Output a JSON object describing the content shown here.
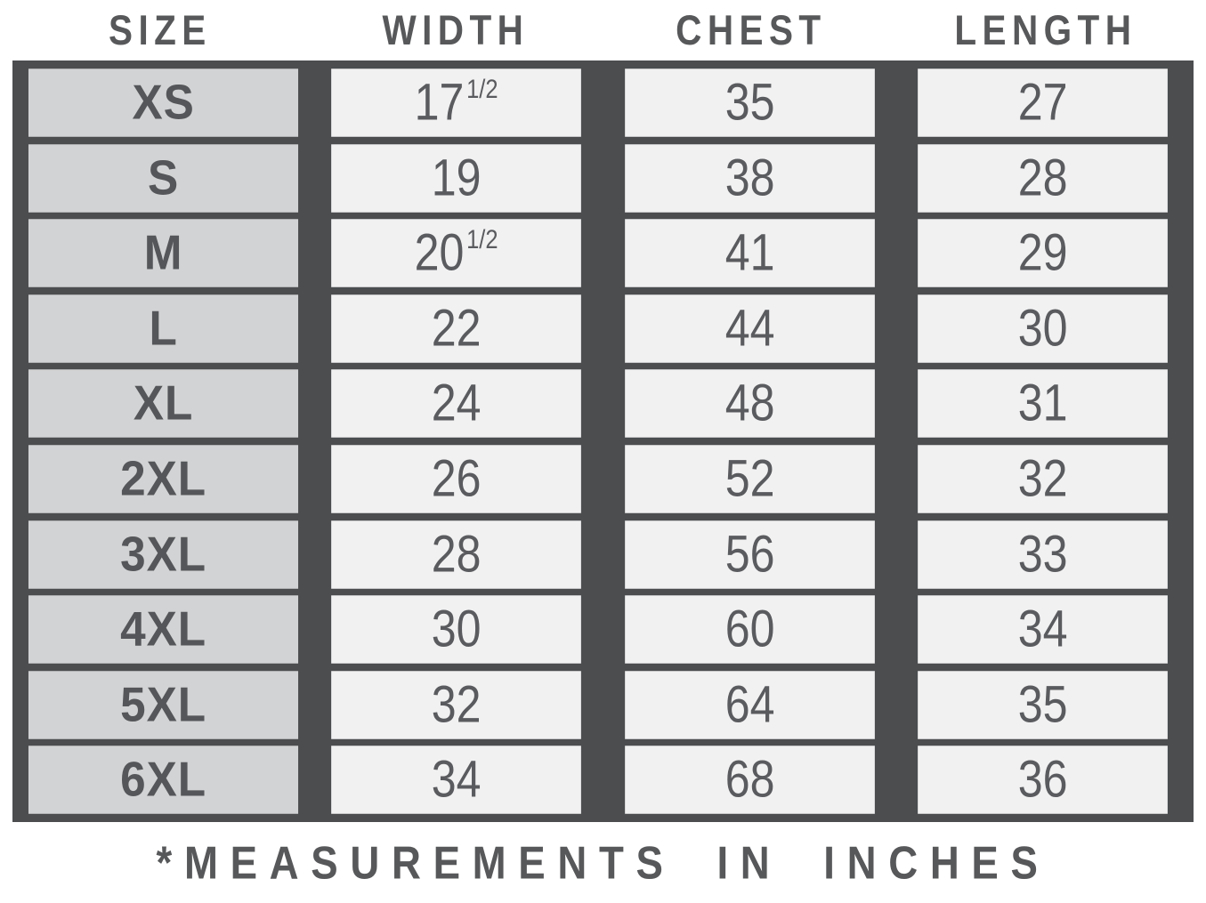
{
  "header": {
    "columns": [
      {
        "key": "size",
        "label": "SIZE"
      },
      {
        "key": "width",
        "label": "WIDTH"
      },
      {
        "key": "chest",
        "label": "CHEST"
      },
      {
        "key": "length",
        "label": "LENGTH"
      }
    ]
  },
  "table": {
    "rows": [
      {
        "size": "XS",
        "width": "17",
        "width_frac": "1/2",
        "chest": "35",
        "length": "27"
      },
      {
        "size": "S",
        "width": "19",
        "width_frac": "",
        "chest": "38",
        "length": "28"
      },
      {
        "size": "M",
        "width": "20",
        "width_frac": "1/2",
        "chest": "41",
        "length": "29"
      },
      {
        "size": "L",
        "width": "22",
        "width_frac": "",
        "chest": "44",
        "length": "30"
      },
      {
        "size": "XL",
        "width": "24",
        "width_frac": "",
        "chest": "48",
        "length": "31"
      },
      {
        "size": "2XL",
        "width": "26",
        "width_frac": "",
        "chest": "52",
        "length": "32"
      },
      {
        "size": "3XL",
        "width": "28",
        "width_frac": "",
        "chest": "56",
        "length": "33"
      },
      {
        "size": "4XL",
        "width": "30",
        "width_frac": "",
        "chest": "60",
        "length": "34"
      },
      {
        "size": "5XL",
        "width": "32",
        "width_frac": "",
        "chest": "64",
        "length": "35"
      },
      {
        "size": "6XL",
        "width": "34",
        "width_frac": "",
        "chest": "68",
        "length": "36"
      }
    ]
  },
  "footer": {
    "note": "*MEASUREMENTS IN INCHES"
  },
  "colors": {
    "grid_border": "#4b4d4f",
    "size_cell_bg": "#d2d3d4",
    "value_cell_bg": "#f1f1f2",
    "text": "#58595b"
  },
  "chart_data": {
    "type": "table",
    "title": "Garment size chart",
    "note": "*MEASUREMENTS IN INCHES",
    "units": "inches",
    "columns": [
      "SIZE",
      "WIDTH",
      "CHEST",
      "LENGTH"
    ],
    "rows": [
      [
        "XS",
        17.5,
        35,
        27
      ],
      [
        "S",
        19,
        38,
        28
      ],
      [
        "M",
        20.5,
        41,
        29
      ],
      [
        "L",
        22,
        44,
        30
      ],
      [
        "XL",
        24,
        48,
        31
      ],
      [
        "2XL",
        26,
        52,
        32
      ],
      [
        "3XL",
        28,
        56,
        33
      ],
      [
        "4XL",
        30,
        60,
        34
      ],
      [
        "5XL",
        32,
        64,
        35
      ],
      [
        "6XL",
        34,
        68,
        36
      ]
    ]
  }
}
